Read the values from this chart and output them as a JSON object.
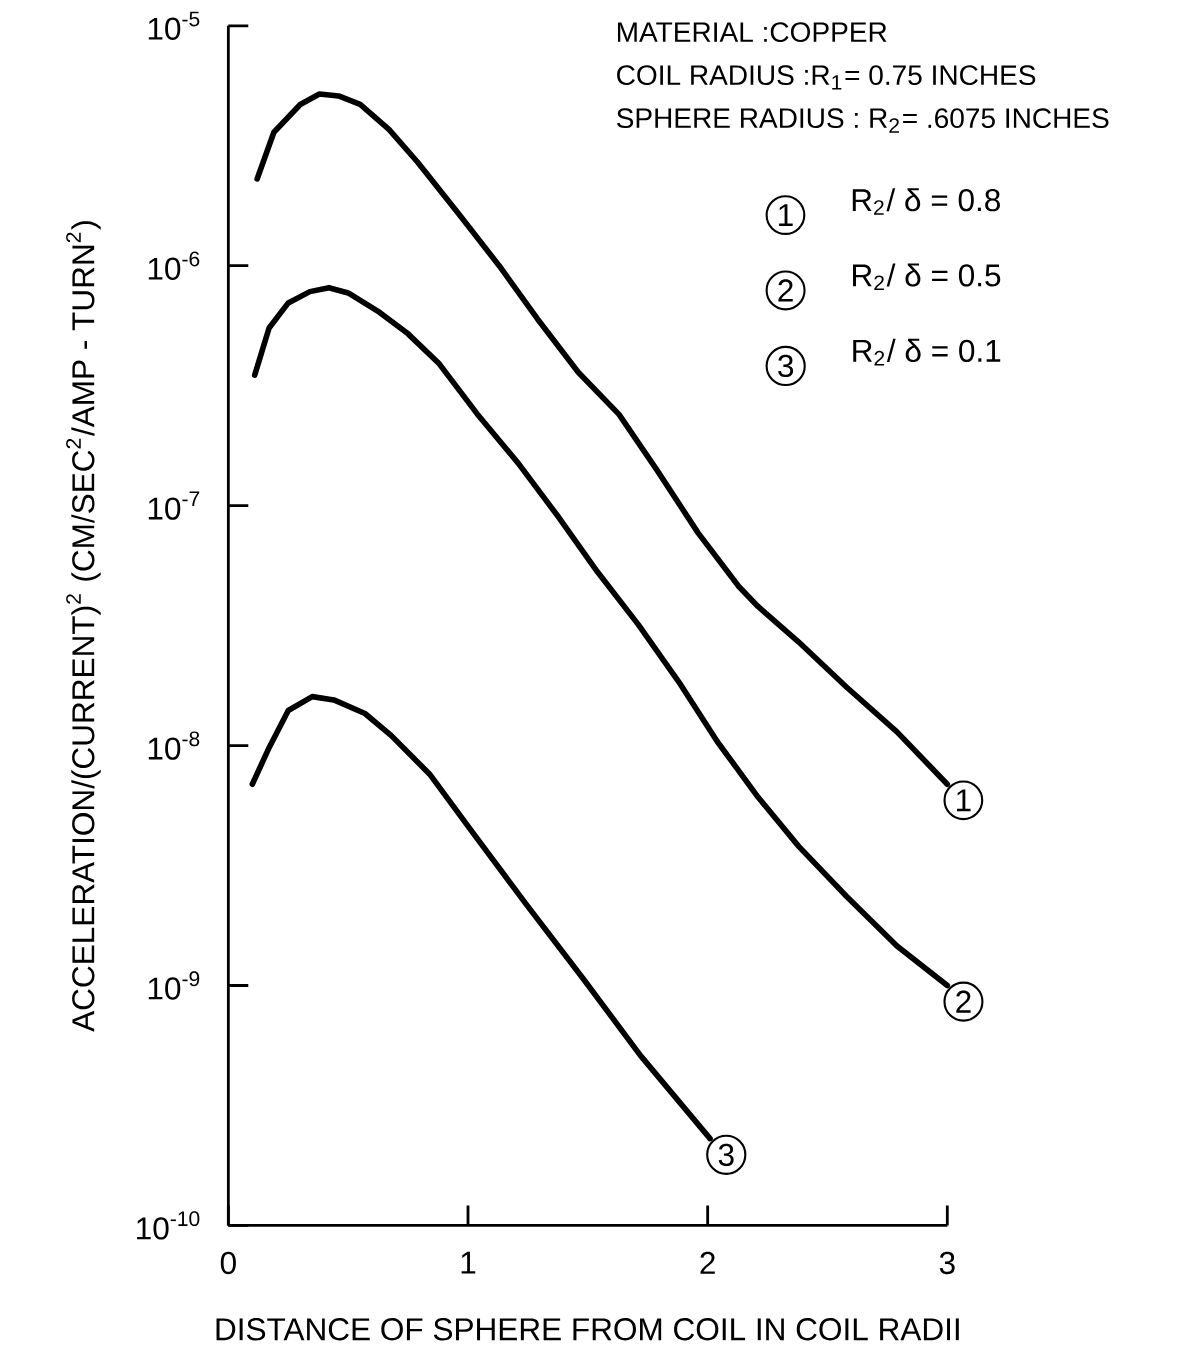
{
  "chart_data": {
    "type": "line",
    "xlabel": "DISTANCE OF SPHERE FROM COIL IN COIL RADII",
    "ylabel": "ACCELERATION/(CURRENT)$^{2}$  (CM/SEC$^{2}$/AMP - TURN$^{2}$)",
    "xlim": [
      0,
      3
    ],
    "xticks": [
      0,
      1,
      2,
      3
    ],
    "ylim": [
      1e-10,
      1e-05
    ],
    "yticks": [
      {
        "value": 1e-10,
        "label": "10$^{-10}$"
      },
      {
        "value": 1e-09,
        "label": "10$^{-9}$"
      },
      {
        "value": 1e-08,
        "label": "10$^{-8}$"
      },
      {
        "value": 1e-07,
        "label": "10$^{-7}$"
      },
      {
        "value": 1e-06,
        "label": "10$^{-6}$"
      },
      {
        "value": 1e-05,
        "label": "10$^{-5}$"
      }
    ],
    "log": "y",
    "legend": "top right",
    "marker": "none",
    "line_style": "solid",
    "series": [
      {
        "name": "R$_{2}$/ δ = 0.8",
        "color": "#000000",
        "x": [
          0.12,
          0.19,
          0.3,
          0.38,
          0.46,
          0.55,
          0.67,
          0.79,
          0.96,
          1.13,
          1.29,
          1.46,
          1.63,
          1.79,
          1.96,
          2.13,
          2.21,
          2.38,
          2.58,
          2.79,
          3.0
        ],
        "values": [
          2.3e-06,
          3.6e-06,
          4.7e-06,
          5.2e-06,
          5.1e-06,
          4.7e-06,
          3.7e-06,
          2.7e-06,
          1.65e-06,
          1e-06,
          6e-07,
          3.6e-07,
          2.4e-07,
          1.4e-07,
          7.7e-08,
          4.6e-08,
          3.8e-08,
          2.7e-08,
          1.75e-08,
          1.14e-08,
          6.9e-09
        ]
      },
      {
        "name": "R$_{2}$/ δ = 0.5",
        "color": "#000000",
        "x": [
          0.11,
          0.17,
          0.25,
          0.34,
          0.42,
          0.5,
          0.63,
          0.75,
          0.88,
          1.04,
          1.21,
          1.38,
          1.54,
          1.71,
          1.88,
          2.04,
          2.21,
          2.38,
          2.58,
          2.79,
          3.0
        ],
        "values": [
          3.5e-07,
          5.5e-07,
          7e-07,
          7.8e-07,
          8.1e-07,
          7.7e-07,
          6.4e-07,
          5.2e-07,
          3.9e-07,
          2.4e-07,
          1.5e-07,
          8.9e-08,
          5.3e-08,
          3.2e-08,
          1.84e-08,
          1.04e-08,
          6.1e-09,
          3.8e-09,
          2.35e-09,
          1.46e-09,
          1e-09
        ]
      },
      {
        "name": "R$_{2}$/ δ = 0.1",
        "color": "#000000",
        "x": [
          0.1,
          0.17,
          0.25,
          0.35,
          0.44,
          0.57,
          0.68,
          0.84,
          1.03,
          1.24,
          1.48,
          1.72,
          2.01
        ],
        "values": [
          6.9e-09,
          9.8e-09,
          1.4e-08,
          1.6e-08,
          1.55e-08,
          1.36e-08,
          1.1e-08,
          7.6e-09,
          4.2e-09,
          2.2e-09,
          1.07e-09,
          5.1e-10,
          2.3e-10
        ]
      }
    ],
    "annotations": [
      "MATERIAL :COPPER",
      "COIL RADIUS :R$_{1}$= 0.75 INCHES",
      "SPHERE RADIUS : R$_{2}$= .6075 INCHES",
      "1",
      "2",
      "3"
    ]
  }
}
